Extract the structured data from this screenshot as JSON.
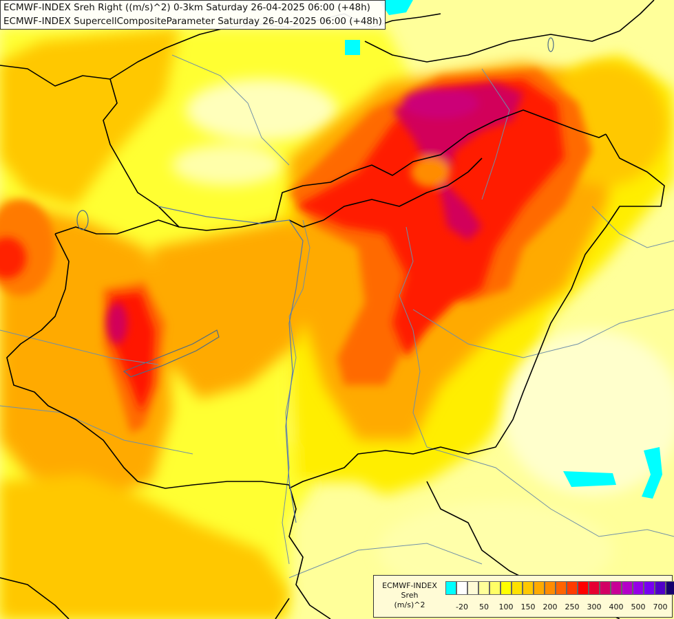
{
  "title_lines": [
    "ECMWF-INDEX Sreh Right ((m/s)^2) 0-3km Saturday 26-04-2025 06:00 (+48h)",
    "ECMWF-INDEX SupercellCompositeParameter Saturday 26-04-2025 06:00 (+48h)"
  ],
  "legend": {
    "title_lines": [
      "ECMWF-INDEX",
      "Sreh",
      "(m/s)^2"
    ],
    "colors": [
      "#00ffff",
      "#ffffff",
      "#fffbd6",
      "#ffff99",
      "#ffff66",
      "#ffff00",
      "#ffe100",
      "#ffc800",
      "#ffaa00",
      "#ff8c00",
      "#ff6400",
      "#ff3c00",
      "#ff0000",
      "#e60032",
      "#d20064",
      "#c80096",
      "#b400c8",
      "#9600e6",
      "#7800f0",
      "#5000c8",
      "#14006e"
    ],
    "labels": [
      "-20",
      "50",
      "100",
      "150",
      "200",
      "250",
      "300",
      "400",
      "500",
      "700"
    ]
  }
}
